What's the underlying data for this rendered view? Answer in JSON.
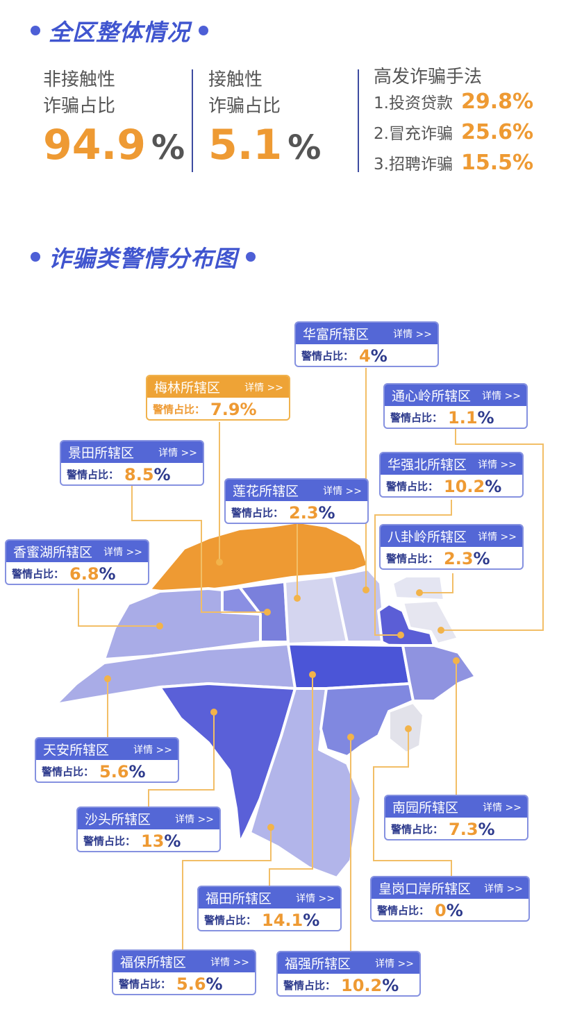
{
  "overall": {
    "title": "全区整体情况",
    "non_contact": {
      "label1": "非接触性",
      "label2": "诈骗占比",
      "value": "94.9",
      "unit": "%"
    },
    "contact": {
      "label1": "接触性",
      "label2": "诈骗占比",
      "value": "5.1",
      "unit": "%"
    },
    "methods": {
      "title": "高发诈骗手法",
      "items": [
        {
          "name": "1.投资贷款",
          "value": "29.8%"
        },
        {
          "name": "2.冒充诈骗",
          "value": "25.6%"
        },
        {
          "name": "3.招聘诈骗",
          "value": "15.5%"
        }
      ]
    }
  },
  "map_section": {
    "title": "诈骗类警情分布图",
    "detail_label": "详情 >>",
    "rate_label": "警情占比：",
    "districts": [
      {
        "name": "华富所辖区",
        "value": "4",
        "highlight": false
      },
      {
        "name": "梅林所辖区",
        "value": "7.9",
        "highlight": true
      },
      {
        "name": "通心岭所辖区",
        "value": "1.1",
        "highlight": false
      },
      {
        "name": "景田所辖区",
        "value": "8.5",
        "highlight": false
      },
      {
        "name": "华强北所辖区",
        "value": "10.2",
        "highlight": false
      },
      {
        "name": "莲花所辖区",
        "value": "2.3",
        "highlight": false
      },
      {
        "name": "八卦岭所辖区",
        "value": "2.3",
        "highlight": false
      },
      {
        "name": "香蜜湖所辖区",
        "value": "6.8",
        "highlight": false
      },
      {
        "name": "天安所辖区",
        "value": "5.6",
        "highlight": false
      },
      {
        "name": "南园所辖区",
        "value": "7.3",
        "highlight": false
      },
      {
        "name": "沙头所辖区",
        "value": "13",
        "highlight": false
      },
      {
        "name": "皇岗口岸所辖区",
        "value": "0",
        "highlight": false
      },
      {
        "name": "福田所辖区",
        "value": "14.1",
        "highlight": false
      },
      {
        "name": "福保所辖区",
        "value": "5.6",
        "highlight": false
      },
      {
        "name": "福强所辖区",
        "value": "10.2",
        "highlight": false
      }
    ],
    "colors": {
      "accent": "#ee9a33",
      "card_header": "#5467d6",
      "highlight_header": "#eea336",
      "title": "#4055cf"
    }
  }
}
